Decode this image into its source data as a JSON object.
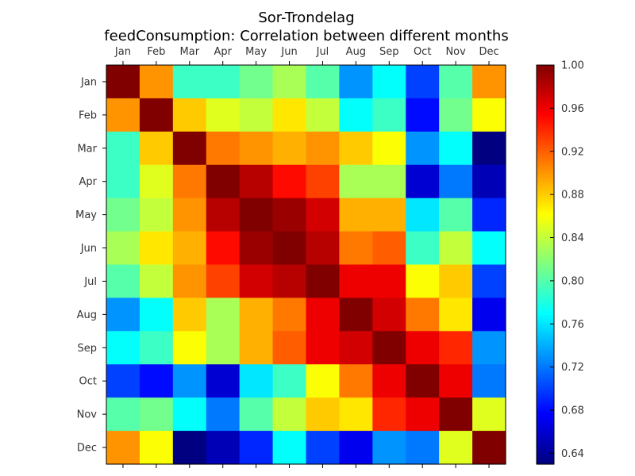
{
  "chart_data": {
    "type": "heatmap",
    "title": "Sor-Trondelag",
    "subtitle": "feedConsumption: Correlation between different months",
    "x_categories": [
      "Jan",
      "Feb",
      "Mar",
      "Apr",
      "May",
      "Jun",
      "Jul",
      "Aug",
      "Sep",
      "Oct",
      "Nov",
      "Dec"
    ],
    "y_categories": [
      "Jan",
      "Feb",
      "Mar",
      "Apr",
      "May",
      "Jun",
      "Jul",
      "Aug",
      "Sep",
      "Oct",
      "Nov",
      "Dec"
    ],
    "x_tick_position": "top",
    "colormap": "jet",
    "value_range": [
      0.63,
      1.0
    ],
    "colorbar_ticks": [
      "0.64",
      "0.68",
      "0.72",
      "0.76",
      "0.80",
      "0.84",
      "0.88",
      "0.92",
      "0.96",
      "1.00"
    ],
    "colorbar_tick_values": [
      0.64,
      0.68,
      0.72,
      0.76,
      0.8,
      0.84,
      0.88,
      0.92,
      0.96,
      1.0
    ],
    "matrix": [
      [
        1.0,
        0.9,
        0.79,
        0.79,
        0.81,
        0.83,
        0.8,
        0.73,
        0.77,
        0.7,
        0.8,
        0.9
      ],
      [
        0.9,
        1.0,
        0.88,
        0.85,
        0.84,
        0.87,
        0.84,
        0.77,
        0.79,
        0.68,
        0.81,
        0.86
      ],
      [
        0.79,
        0.88,
        1.0,
        0.91,
        0.9,
        0.89,
        0.9,
        0.88,
        0.86,
        0.73,
        0.77,
        0.63
      ],
      [
        0.79,
        0.85,
        0.91,
        1.0,
        0.98,
        0.95,
        0.93,
        0.83,
        0.83,
        0.66,
        0.72,
        0.65
      ],
      [
        0.81,
        0.84,
        0.9,
        0.98,
        1.0,
        0.99,
        0.97,
        0.89,
        0.89,
        0.76,
        0.8,
        0.69
      ],
      [
        0.83,
        0.87,
        0.89,
        0.95,
        0.99,
        1.0,
        0.98,
        0.91,
        0.92,
        0.79,
        0.84,
        0.77
      ],
      [
        0.8,
        0.84,
        0.9,
        0.93,
        0.97,
        0.98,
        1.0,
        0.96,
        0.96,
        0.86,
        0.88,
        0.7
      ],
      [
        0.73,
        0.77,
        0.88,
        0.83,
        0.89,
        0.91,
        0.96,
        1.0,
        0.97,
        0.91,
        0.87,
        0.67
      ],
      [
        0.77,
        0.79,
        0.86,
        0.83,
        0.89,
        0.92,
        0.96,
        0.97,
        1.0,
        0.96,
        0.94,
        0.73
      ],
      [
        0.7,
        0.68,
        0.73,
        0.66,
        0.76,
        0.79,
        0.86,
        0.91,
        0.96,
        1.0,
        0.96,
        0.72
      ],
      [
        0.8,
        0.81,
        0.77,
        0.72,
        0.8,
        0.84,
        0.88,
        0.87,
        0.94,
        0.96,
        1.0,
        0.85
      ],
      [
        0.9,
        0.86,
        0.63,
        0.65,
        0.69,
        0.77,
        0.7,
        0.67,
        0.73,
        0.72,
        0.85,
        1.0
      ]
    ]
  }
}
